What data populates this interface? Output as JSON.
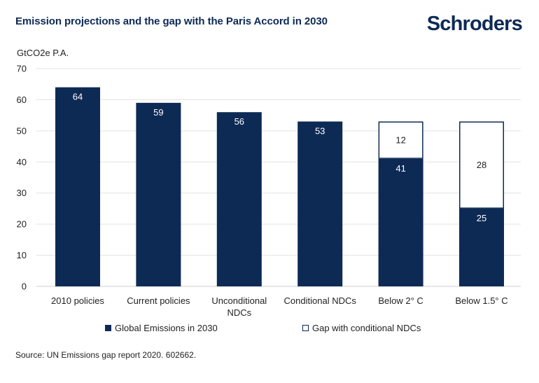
{
  "header": {
    "title": "Emission projections and the gap with the Paris Accord in 2030",
    "brand": "Schroders"
  },
  "footer": {
    "source": "Source: UN Emissions gap report 2020. 602662."
  },
  "colors": {
    "emissions": "#0d2a55",
    "gap_fill": "#ffffff",
    "gap_border": "#0d2a55",
    "grid": "#e3e3e3"
  },
  "chart_data": {
    "type": "bar",
    "stacked": true,
    "title": "Emission projections and the gap with the Paris Accord in 2030",
    "ylabel": "GtCO2e P.A.",
    "xlabel": "",
    "ylim": [
      0,
      70
    ],
    "yticks": [
      0,
      10,
      20,
      30,
      40,
      50,
      60,
      70
    ],
    "grid": true,
    "legend_position": "bottom",
    "categories": [
      [
        "2010 policies"
      ],
      [
        "Current policies"
      ],
      [
        "Unconditional",
        "NDCs"
      ],
      [
        "Conditional NDCs"
      ],
      [
        "Below 2° C"
      ],
      [
        "Below 1.5° C"
      ]
    ],
    "series": [
      {
        "name": "Global Emissions in 2030",
        "values": [
          64,
          59,
          56,
          53,
          41,
          25
        ]
      },
      {
        "name": "Gap with conditional NDCs",
        "values": [
          null,
          null,
          null,
          null,
          12,
          28
        ]
      }
    ]
  }
}
